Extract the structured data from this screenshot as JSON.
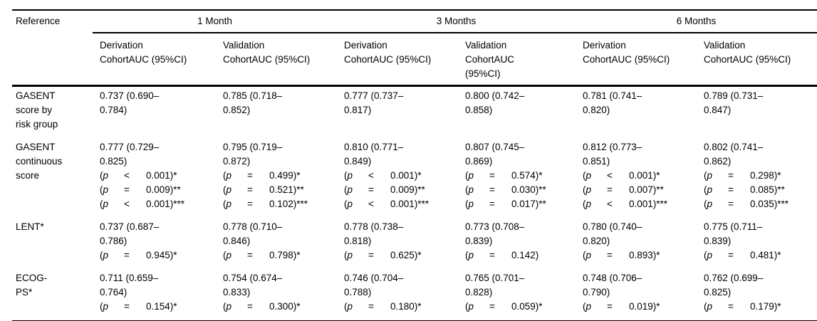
{
  "table": {
    "corner_header": "Reference",
    "p_open": "(",
    "p_var": "p",
    "month_groups": [
      "1 Month",
      "3 Months",
      "6 Months"
    ],
    "sub_headers": [
      "Derivation\nCohortAUC (95%CI)",
      "Validation\nCohortAUC (95%CI)",
      "Derivation\nCohortAUC (95%CI)",
      "Validation\nCohortAUC\n(95%CI)",
      "Derivation\nCohortAUC (95%CI)",
      "Validation\nCohortAUC (95%CI)"
    ],
    "rows": [
      {
        "label": "GASENT\nscore by\nrisk group",
        "cells": [
          {
            "auc": "0.737 (0.690–\n0.784)",
            "p_lines": []
          },
          {
            "auc": "0.785 (0.718–\n0.852)",
            "p_lines": []
          },
          {
            "auc": "0.777 (0.737–\n0.817)",
            "p_lines": []
          },
          {
            "auc": "0.800 (0.742–\n0.858)",
            "p_lines": []
          },
          {
            "auc": "0.781 (0.741–\n0.820)",
            "p_lines": []
          },
          {
            "auc": "0.789 (0.731–\n0.847)",
            "p_lines": []
          }
        ]
      },
      {
        "label": "GASENT\ncontinuous\nscore",
        "cells": [
          {
            "auc": "0.777 (0.729–\n0.825)",
            "p_lines": [
              {
                "op": "<",
                "rhs": "0.001)*"
              },
              {
                "op": "=",
                "rhs": "0.009)**"
              },
              {
                "op": "<",
                "rhs": "0.001)***"
              }
            ]
          },
          {
            "auc": "0.795 (0.719–\n0.872)",
            "p_lines": [
              {
                "op": "=",
                "rhs": "0.499)*"
              },
              {
                "op": "=",
                "rhs": "0.521)**"
              },
              {
                "op": "=",
                "rhs": "0.102)***"
              }
            ]
          },
          {
            "auc": "0.810 (0.771–\n0.849)",
            "p_lines": [
              {
                "op": "<",
                "rhs": "0.001)*"
              },
              {
                "op": "=",
                "rhs": "0.009)**"
              },
              {
                "op": "<",
                "rhs": "0.001)***"
              }
            ]
          },
          {
            "auc": "0.807 (0.745–\n0.869)",
            "p_lines": [
              {
                "op": "=",
                "rhs": "0.574)*"
              },
              {
                "op": "=",
                "rhs": "0.030)**"
              },
              {
                "op": "=",
                "rhs": "0.017)**"
              }
            ]
          },
          {
            "auc": "0.812 (0.773–\n0.851)",
            "p_lines": [
              {
                "op": "<",
                "rhs": "0.001)*"
              },
              {
                "op": "=",
                "rhs": "0.007)**"
              },
              {
                "op": "<",
                "rhs": "0.001)***"
              }
            ]
          },
          {
            "auc": "0.802 (0.741–\n0.862)",
            "p_lines": [
              {
                "op": "=",
                "rhs": "0.298)*"
              },
              {
                "op": "=",
                "rhs": "0.085)**"
              },
              {
                "op": "=",
                "rhs": "0.035)***"
              }
            ]
          }
        ]
      },
      {
        "label": "LENT*",
        "cells": [
          {
            "auc": "0.737 (0.687–\n0.786)",
            "p_lines": [
              {
                "op": "=",
                "rhs": "0.945)*"
              }
            ]
          },
          {
            "auc": "0.778 (0.710–\n0.846)",
            "p_lines": [
              {
                "op": "=",
                "rhs": "0.798)*"
              }
            ]
          },
          {
            "auc": "0.778 (0.738–\n0.818)",
            "p_lines": [
              {
                "op": "=",
                "rhs": "0.625)*"
              }
            ]
          },
          {
            "auc": "0.773 (0.708–\n0.839)",
            "p_lines": [
              {
                "op": "=",
                "rhs": "0.142)"
              }
            ]
          },
          {
            "auc": "0.780 (0.740–\n0.820)",
            "p_lines": [
              {
                "op": "=",
                "rhs": "0.893)*"
              }
            ]
          },
          {
            "auc": "0.775 (0.711–\n0.839)",
            "p_lines": [
              {
                "op": "=",
                "rhs": "0.481)*"
              }
            ]
          }
        ]
      },
      {
        "label": "ECOG-\nPS*",
        "cells": [
          {
            "auc": "0.711 (0.659–\n0.764)",
            "p_lines": [
              {
                "op": "=",
                "rhs": "0.154)*"
              }
            ]
          },
          {
            "auc": "0.754 (0.674–\n0.833)",
            "p_lines": [
              {
                "op": "=",
                "rhs": "0.300)*"
              }
            ]
          },
          {
            "auc": "0.746 (0.704–\n0.788)",
            "p_lines": [
              {
                "op": "=",
                "rhs": "0.180)*"
              }
            ]
          },
          {
            "auc": "0.765 (0.701–\n0.828)",
            "p_lines": [
              {
                "op": "=",
                "rhs": "0.059)*"
              }
            ]
          },
          {
            "auc": "0.748 (0.706–\n0.790)",
            "p_lines": [
              {
                "op": "=",
                "rhs": "0.019)*"
              }
            ]
          },
          {
            "auc": "0.762 (0.699–\n0.825)",
            "p_lines": [
              {
                "op": "=",
                "rhs": "0.179)*"
              }
            ]
          }
        ]
      }
    ]
  }
}
